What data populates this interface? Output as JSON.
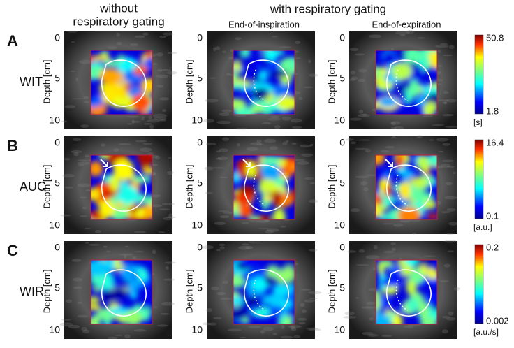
{
  "header": {
    "col1": [
      "without",
      "respiratory gating"
    ],
    "col2": "with respiratory gating",
    "sub1": "End-of-inspiration",
    "sub2": "End-of-expiration"
  },
  "depth_axis": {
    "label": "Depth [cm]",
    "ticks": [
      0,
      5,
      10
    ]
  },
  "rows": [
    {
      "letter": "A",
      "label": "WIT",
      "max": 50.8,
      "min": 1.8,
      "unit": "[s]"
    },
    {
      "letter": "B",
      "label": "AUC",
      "max": 16.4,
      "min": 0.1,
      "unit": "[a.u.]"
    },
    {
      "letter": "C",
      "label": "WIR",
      "max": 0.2,
      "min": 0.002,
      "unit": "[a.u./s]"
    }
  ]
}
